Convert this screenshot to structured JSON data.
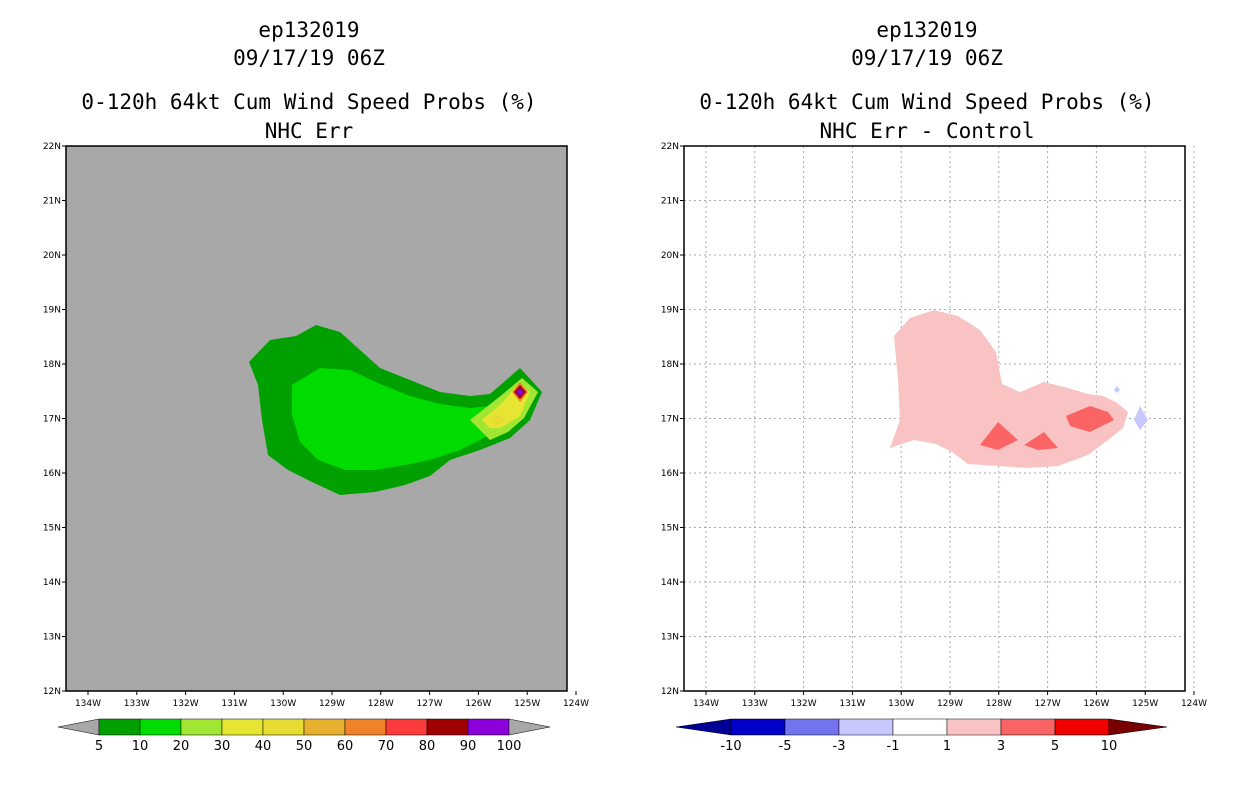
{
  "left_panel": {
    "storm_id": "ep132019",
    "datetime": "09/17/19 06Z",
    "product": "0-120h 64kt Cum Wind Speed Probs (%)",
    "subtitle": "NHC Err",
    "lat_labels": [
      "22N",
      "21N",
      "20N",
      "19N",
      "18N",
      "17N",
      "16N",
      "15N",
      "14N",
      "13N",
      "12N"
    ],
    "lon_labels": [
      "134W",
      "133W",
      "132W",
      "131W",
      "130W",
      "129W",
      "128W",
      "127W",
      "126W",
      "125W",
      "124W"
    ],
    "colorbar_labels": [
      "5",
      "10",
      "20",
      "30",
      "40",
      "50",
      "60",
      "70",
      "80",
      "90",
      "100"
    ],
    "colorbar_colors": [
      "#00a000",
      "#00dc00",
      "#a0e632",
      "#e6e632",
      "#e6dc32",
      "#e6af2d",
      "#f08228",
      "#fa3c3c",
      "#a00000",
      "#8c00dc"
    ],
    "background_color": "#a8a8a8"
  },
  "right_panel": {
    "storm_id": "ep132019",
    "datetime": "09/17/19 06Z",
    "product": "0-120h 64kt Cum Wind Speed Probs (%)",
    "subtitle": "NHC Err - Control",
    "lat_labels": [
      "22N",
      "21N",
      "20N",
      "19N",
      "18N",
      "17N",
      "16N",
      "15N",
      "14N",
      "13N",
      "12N"
    ],
    "lon_labels": [
      "134W",
      "133W",
      "132W",
      "131W",
      "130W",
      "129W",
      "128W",
      "127W",
      "126W",
      "125W",
      "124W"
    ],
    "colorbar_labels": [
      "-10",
      "-5",
      "-3",
      "-1",
      "1",
      "3",
      "5",
      "10"
    ],
    "colorbar_colors": [
      "#0000c8",
      "#7373f0",
      "#c8c8ff",
      "#ffffff",
      "#fac3c3",
      "#fa6464",
      "#f00000"
    ],
    "colorbar_end_colors": [
      "#000096",
      "#780000"
    ]
  }
}
